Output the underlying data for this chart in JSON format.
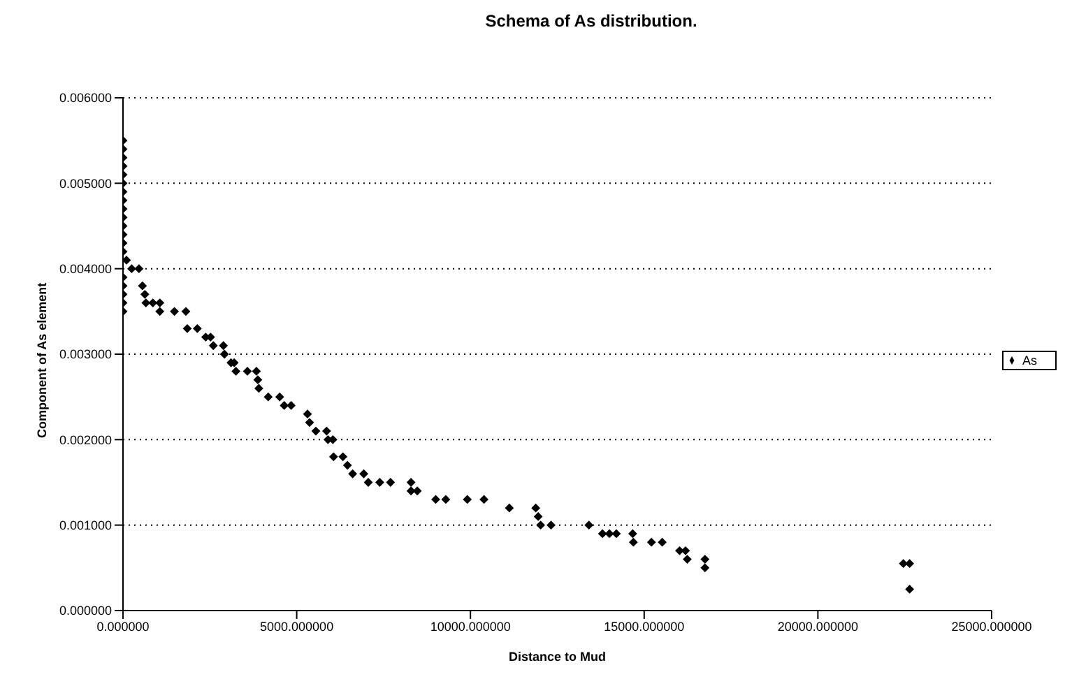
{
  "chart_data": {
    "type": "scatter",
    "title": "Schema of As distribution.",
    "xlabel": "Distance to Mud",
    "ylabel": "Component of As element",
    "series": [
      {
        "name": "As",
        "color": "#000000",
        "x": [
          0,
          0,
          0,
          0,
          0,
          0,
          0,
          0,
          0,
          0,
          0,
          0,
          0,
          0,
          0,
          0,
          0,
          0,
          0,
          100,
          250,
          460,
          560,
          630,
          660,
          860,
          1060,
          1060,
          1480,
          1810,
          1850,
          2140,
          2380,
          2520,
          2600,
          2890,
          2920,
          3110,
          3200,
          3250,
          3580,
          3840,
          3880,
          3910,
          4180,
          4510,
          4640,
          4840,
          5310,
          5370,
          5550,
          5860,
          5900,
          6040,
          6060,
          6330,
          6460,
          6610,
          6930,
          7060,
          7390,
          7700,
          8290,
          8290,
          8470,
          9000,
          9290,
          9910,
          10390,
          11120,
          11880,
          11950,
          12020,
          12320,
          13410,
          13800,
          14000,
          14200,
          14670,
          14690,
          15210,
          15520,
          16020,
          16190,
          16240,
          16750,
          16750,
          22460,
          22640,
          22640
        ],
        "values": [
          0.0035,
          0.0036,
          0.0037,
          0.0038,
          0.0039,
          0.0042,
          0.0043,
          0.0044,
          0.0045,
          0.0046,
          0.0047,
          0.0048,
          0.0049,
          0.005,
          0.0051,
          0.0052,
          0.0053,
          0.0054,
          0.0055,
          0.0041,
          0.004,
          0.004,
          0.0038,
          0.0037,
          0.0036,
          0.0036,
          0.0036,
          0.0035,
          0.0035,
          0.0035,
          0.0033,
          0.0033,
          0.0032,
          0.0032,
          0.0031,
          0.0031,
          0.003,
          0.0029,
          0.0029,
          0.0028,
          0.0028,
          0.0028,
          0.0027,
          0.0026,
          0.0025,
          0.0025,
          0.0024,
          0.0024,
          0.0023,
          0.0022,
          0.0021,
          0.0021,
          0.002,
          0.002,
          0.0018,
          0.0018,
          0.0017,
          0.0016,
          0.0016,
          0.0015,
          0.0015,
          0.0015,
          0.0015,
          0.0014,
          0.0014,
          0.0013,
          0.0013,
          0.0013,
          0.0013,
          0.0012,
          0.0012,
          0.0011,
          0.001,
          0.001,
          0.001,
          0.0009,
          0.0009,
          0.0009,
          0.0009,
          0.0008,
          0.0008,
          0.0008,
          0.0007,
          0.0007,
          0.0006,
          0.0006,
          0.0005,
          0.00055,
          0.00055,
          0.00025
        ]
      }
    ],
    "xlim": [
      0,
      25000
    ],
    "xticks": [
      {
        "value": 0,
        "label": "0.000000"
      },
      {
        "value": 5000,
        "label": "5000.000000"
      },
      {
        "value": 10000,
        "label": "10000.000000"
      },
      {
        "value": 15000,
        "label": "15000.000000"
      },
      {
        "value": 20000,
        "label": "20000.000000"
      },
      {
        "value": 25000,
        "label": "25000.000000"
      }
    ],
    "ylim": [
      0,
      0.006
    ],
    "yticks": [
      {
        "value": 0,
        "label": "0.000000"
      },
      {
        "value": 0.001,
        "label": "0.001000"
      },
      {
        "value": 0.002,
        "label": "0.002000"
      },
      {
        "value": 0.003,
        "label": "0.003000"
      },
      {
        "value": 0.004,
        "label": "0.004000"
      },
      {
        "value": 0.005,
        "label": "0.005000"
      },
      {
        "value": 0.006,
        "label": "0.006000"
      }
    ],
    "grid": "y",
    "legend": "right",
    "marker": "diamond"
  }
}
